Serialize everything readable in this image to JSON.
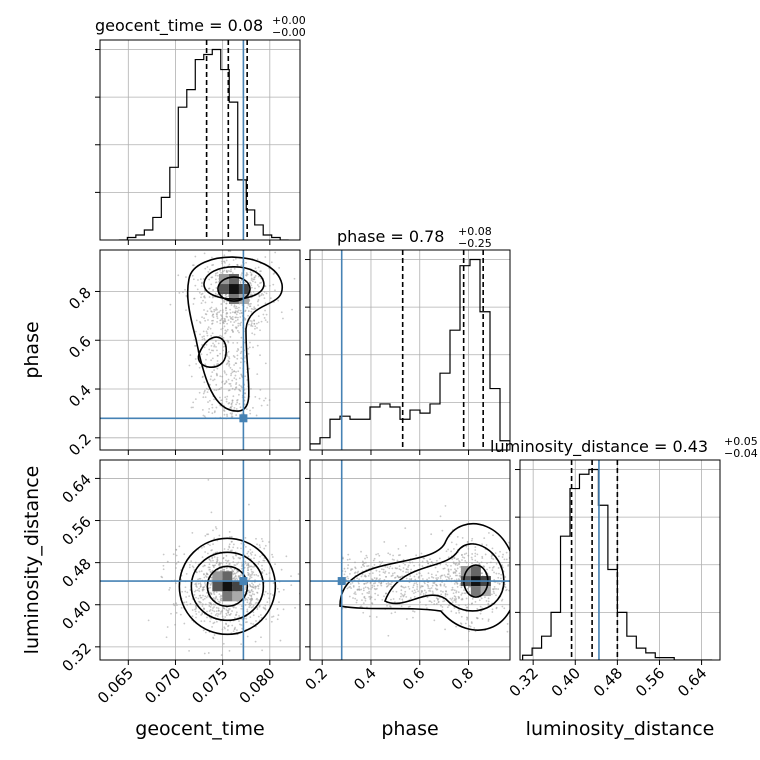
{
  "colors": {
    "truth": "#4682b4",
    "contour": "#000000",
    "grid": "#b0b0b0",
    "points": "#9a9a9a"
  },
  "chart_data": {
    "type": "corner",
    "parameters": [
      "geocent_time",
      "phase",
      "luminosity_distance"
    ],
    "truths": {
      "geocent_time": 0.0772,
      "phase": 0.28,
      "luminosity_distance": 0.445
    },
    "ranges": {
      "geocent_time": [
        0.062,
        0.0832
      ],
      "phase": [
        0.15,
        0.97
      ],
      "luminosity_distance": [
        0.295,
        0.675
      ]
    },
    "ticks": {
      "geocent_time": [
        "0.065",
        "0.070",
        "0.075",
        "0.080"
      ],
      "phase": [
        "0.2",
        "0.4",
        "0.6",
        "0.8"
      ],
      "luminosity_distance": [
        "0.32",
        "0.40",
        "0.48",
        "0.56",
        "0.64"
      ]
    },
    "titles": [
      {
        "param": "geocent_time",
        "label": "geocent_time = 0.08",
        "plus": "+0.00",
        "minus": "−0.00"
      },
      {
        "param": "phase",
        "label": "phase = 0.78",
        "plus": "+0.08",
        "minus": "−0.25"
      },
      {
        "param": "luminosity_distance",
        "label": "luminosity_distance = 0.43",
        "plus": "+0.05",
        "minus": "−0.04"
      }
    ],
    "quantiles": {
      "geocent_time": [
        0.0733,
        0.0756,
        0.0776
      ],
      "phase": [
        0.53,
        0.78,
        0.86
      ],
      "luminosity_distance": [
        0.393,
        0.432,
        0.48
      ]
    },
    "histograms": {
      "geocent_time": [
        0,
        1,
        2,
        4,
        9,
        17,
        29,
        53,
        60,
        72,
        74,
        76,
        68,
        55,
        24,
        12,
        6,
        2,
        1,
        0
      ],
      "phase": [
        2,
        4,
        10,
        11,
        10,
        10,
        14,
        15,
        14,
        10,
        13,
        12,
        15,
        25,
        39,
        60,
        62,
        45,
        20,
        3
      ],
      "luminosity_distance": [
        2,
        5,
        10,
        20,
        52,
        72,
        78,
        80,
        65,
        38,
        20,
        10,
        5,
        3,
        1,
        1,
        0,
        0,
        0,
        0
      ]
    },
    "contour_centers": {
      "geocent_time_vs_phase": {
        "x": 0.0762,
        "y": 0.81
      },
      "geocent_time_vs_luminosity_distance": {
        "x": 0.0755,
        "y": 0.435
      },
      "phase_vs_luminosity_distance": {
        "x": 0.83,
        "y": 0.445
      }
    },
    "grid": true
  }
}
